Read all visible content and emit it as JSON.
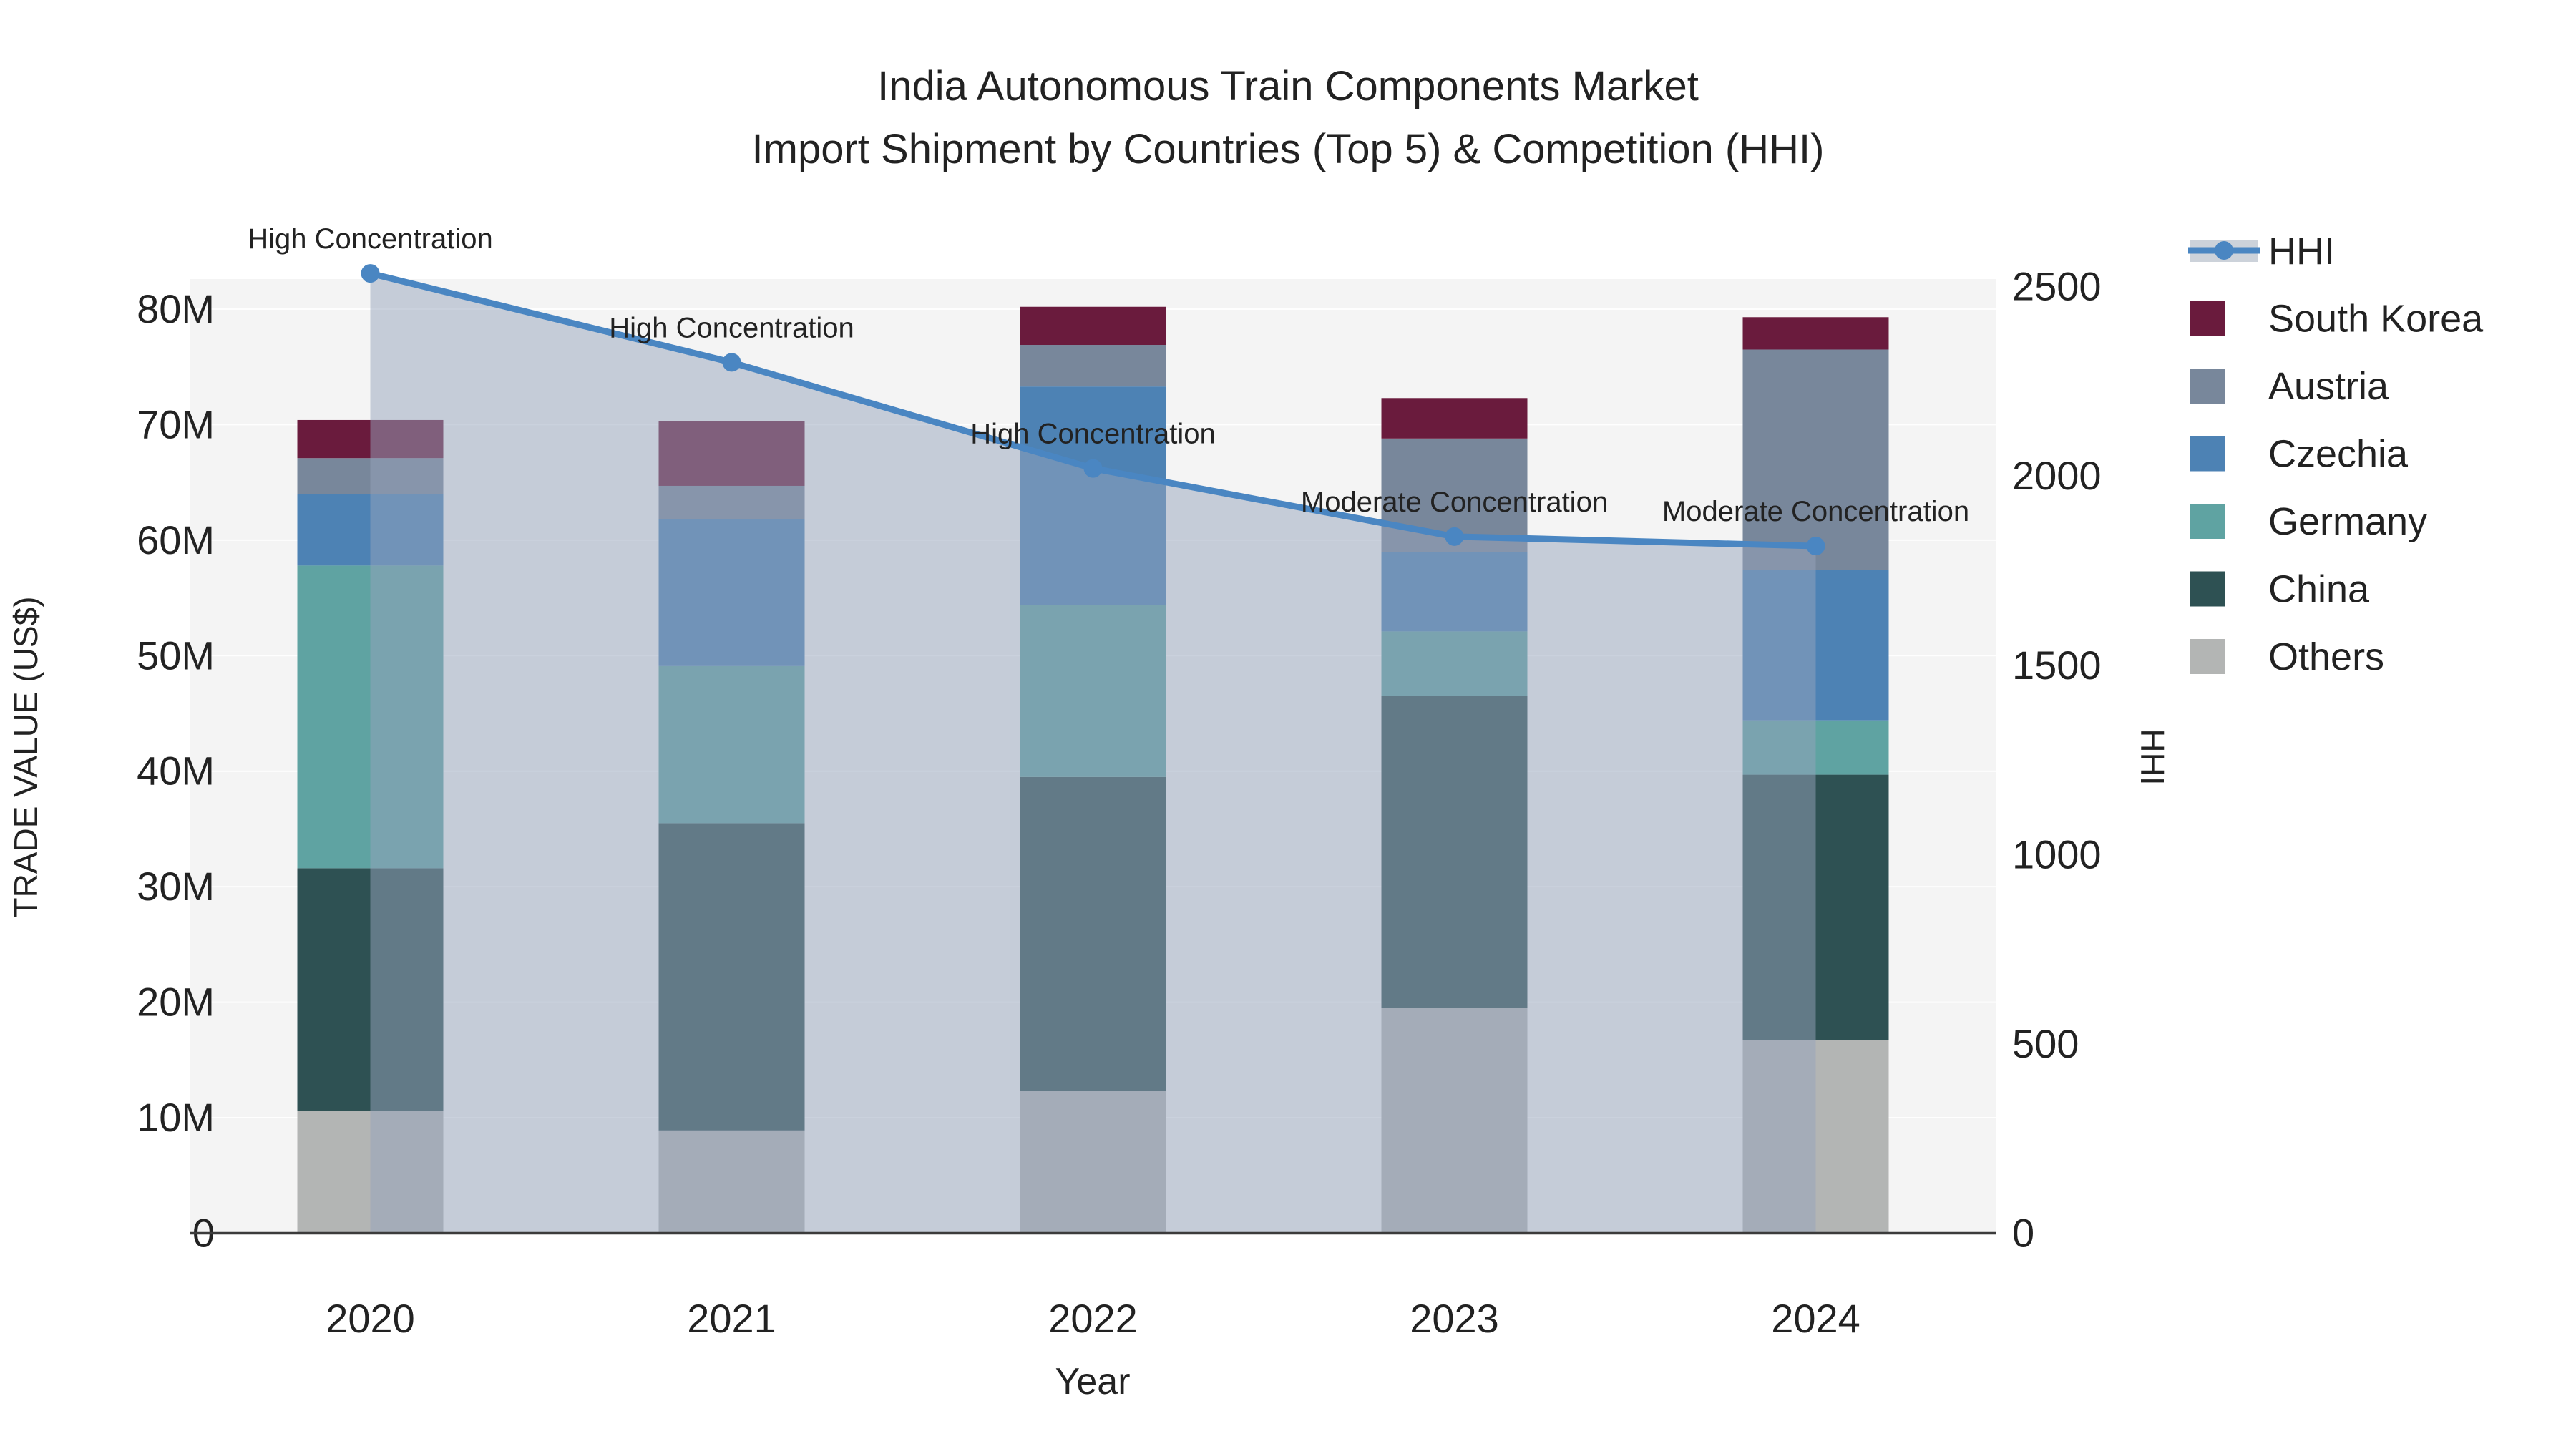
{
  "title": {
    "line1": "India Autonomous Train Components Market",
    "line2": "Import Shipment by Countries (Top 5) & Competition (HHI)"
  },
  "axes": {
    "y_left_label": "TRADE VALUE (US$)",
    "y_left_ticks": [
      "0",
      "10M",
      "20M",
      "30M",
      "40M",
      "50M",
      "60M",
      "70M",
      "80M"
    ],
    "y_right_label": "HHI",
    "y_right_ticks": [
      "0",
      "500",
      "1000",
      "1500",
      "2000",
      "2500"
    ],
    "x_label": "Year"
  },
  "legend": {
    "items": [
      {
        "label": "HHI",
        "type": "line"
      },
      {
        "label": "South Korea",
        "type": "swatch"
      },
      {
        "label": "Austria",
        "type": "swatch"
      },
      {
        "label": "Czechia",
        "type": "swatch"
      },
      {
        "label": "Germany",
        "type": "swatch"
      },
      {
        "label": "China",
        "type": "swatch"
      },
      {
        "label": "Others",
        "type": "swatch"
      }
    ]
  },
  "colors": {
    "south_korea": "#6a1b3d",
    "austria": "#78879b",
    "czechia": "#4d82b4",
    "germany": "#5fa3a2",
    "china": "#2e5153",
    "others": "#b3b5b4",
    "hhi_line": "#4a86c2",
    "hhi_fill": "rgba(150,163,188,0.5)",
    "plot_bg": "#f4f4f4",
    "gridline": "#ffffff",
    "axis_line": "#3b3b3b"
  },
  "chart_data": {
    "type": "bar+line",
    "title": "India Autonomous Train Components Market — Import Shipment by Countries (Top 5) & Competition (HHI)",
    "categories": [
      "2020",
      "2021",
      "2022",
      "2023",
      "2024"
    ],
    "stack_note": "series listed bottom-to-top; values in millions US$",
    "series": [
      {
        "name": "Others",
        "color_key": "others",
        "values": [
          10.6,
          8.9,
          12.3,
          19.5,
          16.7
        ]
      },
      {
        "name": "China",
        "color_key": "china",
        "values": [
          21.0,
          26.6,
          27.2,
          27.0,
          23.0
        ]
      },
      {
        "name": "Germany",
        "color_key": "germany",
        "values": [
          26.2,
          13.6,
          14.9,
          5.6,
          4.7
        ]
      },
      {
        "name": "Czechia",
        "color_key": "czechia",
        "values": [
          6.2,
          12.7,
          18.9,
          6.9,
          13.0
        ]
      },
      {
        "name": "Austria",
        "color_key": "austria",
        "values": [
          3.1,
          2.9,
          3.6,
          9.8,
          19.1
        ]
      },
      {
        "name": "South Korea",
        "color_key": "south_korea",
        "values": [
          3.3,
          5.6,
          3.3,
          3.5,
          2.8
        ]
      }
    ],
    "bar_totals": [
      70.4,
      70.3,
      80.2,
      72.3,
      79.3
    ],
    "line_series": {
      "name": "HHI",
      "values": [
        2535,
        2300,
        2020,
        1840,
        1815
      ],
      "color_key": "hhi_line",
      "fill": true
    },
    "annotations": [
      {
        "year": "2020",
        "text": "High Concentration"
      },
      {
        "year": "2021",
        "text": "High Concentration"
      },
      {
        "year": "2022",
        "text": "High Concentration"
      },
      {
        "year": "2023",
        "text": "Moderate Concentration"
      },
      {
        "year": "2024",
        "text": "Moderate Concentration"
      }
    ],
    "xlabel": "Year",
    "ylabel_left": "TRADE VALUE (US$)",
    "ylabel_right": "HHI",
    "ylim_left_millions": [
      0,
      82.6
    ],
    "ylim_right": [
      0,
      2520
    ],
    "grid": true,
    "legend_position": "right"
  }
}
